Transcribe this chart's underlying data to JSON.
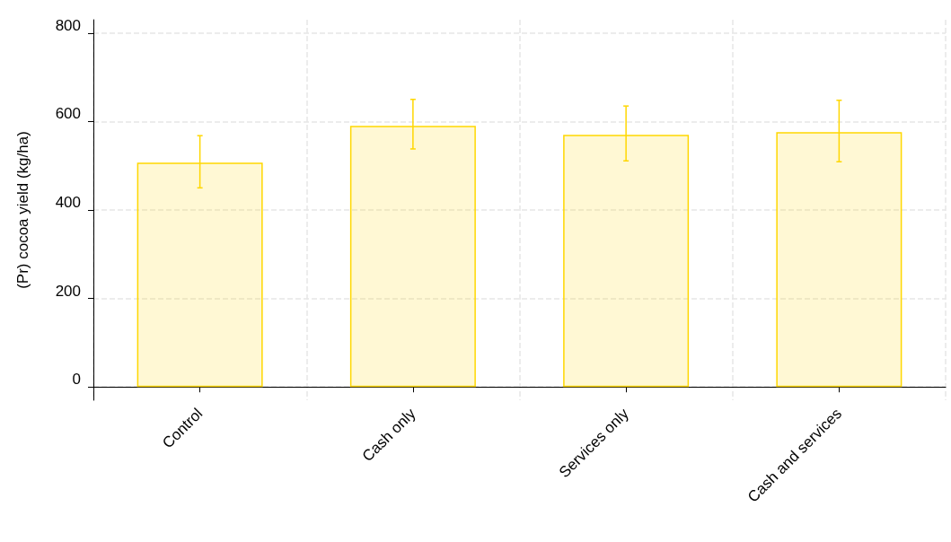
{
  "chart_data": {
    "type": "bar",
    "ylabel": "(Pr) cocoa yield (kg/ha)",
    "categories": [
      "Control",
      "Cash only",
      "Services only",
      "Cash and services"
    ],
    "values": [
      507,
      590,
      570,
      576
    ],
    "errors": [
      [
        450,
        568
      ],
      [
        538,
        650
      ],
      [
        511,
        635
      ],
      [
        509,
        648
      ]
    ],
    "color": "#ffd700",
    "ylim": [
      -30,
      830
    ],
    "yticks": [
      0,
      200,
      400,
      600,
      800
    ],
    "grid": true
  }
}
